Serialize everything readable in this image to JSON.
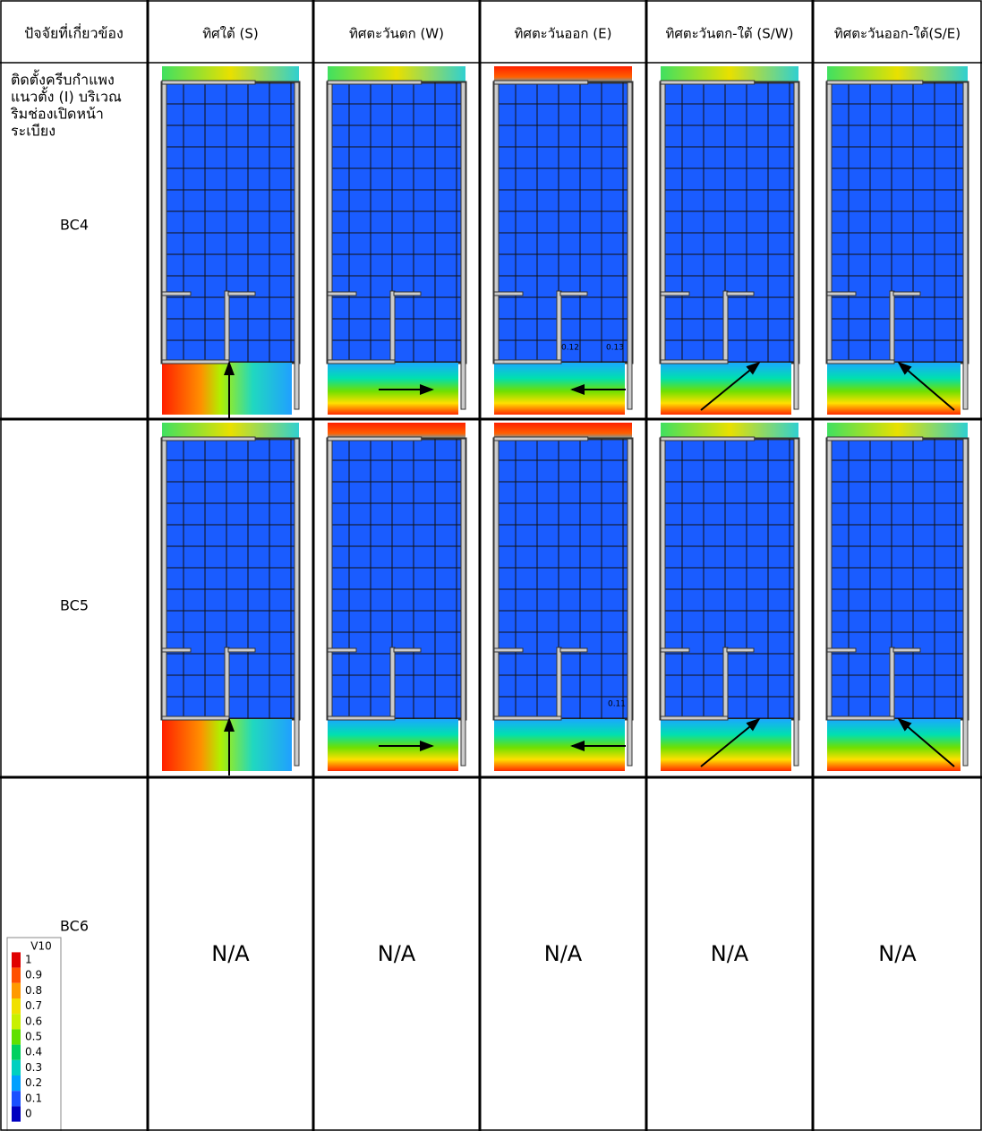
{
  "table": {
    "header": [
      "ปัจจัยที่เกี่ยวข้อง",
      "ทิศใต้ (S)",
      "ทิศตะวันตก (W)",
      "ทิศตะวันออก (E)",
      "ทิศตะวันตก-ใต้ (S/W)",
      "ทิศตะวันออก-ใต้(S/E)"
    ],
    "rows": [
      {
        "description": [
          "ติดตั้งครีบกำแพง",
          "แนวตั้ง (I) บริเวณ",
          "ริมช่องเปิดหน้า",
          "ระเบียง"
        ],
        "case": "BC4",
        "east_labels": [
          "0.12",
          "0.13"
        ]
      },
      {
        "case": "BC5",
        "east_labels": [
          "0.11"
        ]
      },
      {
        "case": "BC6",
        "cells": [
          "N/A",
          "N/A",
          "N/A",
          "N/A",
          "N/A"
        ]
      }
    ],
    "legend": {
      "title": "V10",
      "labels": [
        "1",
        "0.9",
        "0.8",
        "0.7",
        "0.6",
        "0.5",
        "0.4",
        "0.3",
        "0.2",
        "0.1",
        "0"
      ]
    }
  }
}
